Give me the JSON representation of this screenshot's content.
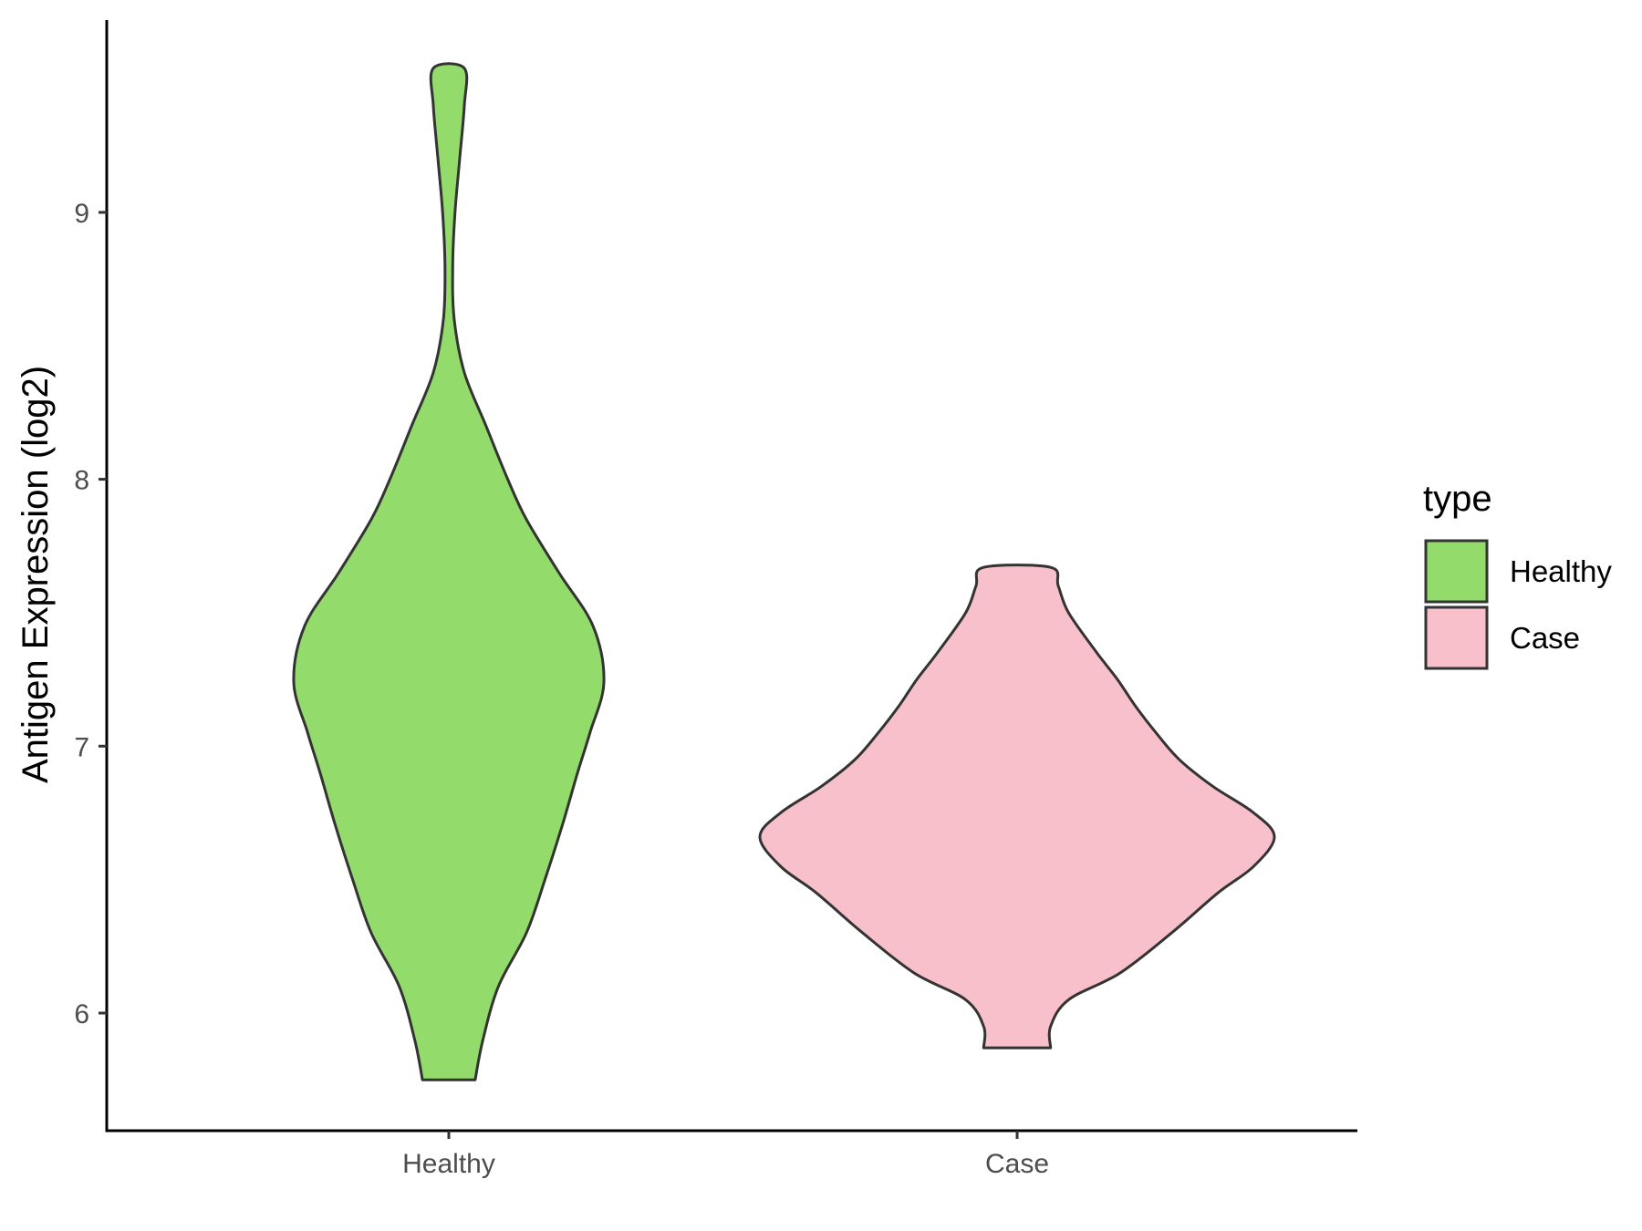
{
  "chart_data": {
    "type": "violin",
    "ylabel": "Antigen Expression (log2)",
    "xlabel": "",
    "ylim": [
      5.55,
      9.73
    ],
    "yticks": [
      6,
      7,
      8,
      9
    ],
    "categories": [
      "Healthy",
      "Case"
    ],
    "grid": false,
    "legend": {
      "title": "type",
      "placement": "right",
      "entries": [
        {
          "label": "Healthy",
          "color": "#93DC6B"
        },
        {
          "label": "Case",
          "color": "#F8C0CB"
        }
      ]
    },
    "series": [
      {
        "category": "Healthy",
        "color": "#93DC6B",
        "min": 5.75,
        "max": 9.54,
        "density_width": [
          [
            5.75,
            0.17
          ],
          [
            5.9,
            0.22
          ],
          [
            6.1,
            0.32
          ],
          [
            6.3,
            0.5
          ],
          [
            6.5,
            0.62
          ],
          [
            6.7,
            0.73
          ],
          [
            6.9,
            0.83
          ],
          [
            7.05,
            0.91
          ],
          [
            7.24,
            1.0
          ],
          [
            7.45,
            0.93
          ],
          [
            7.65,
            0.71
          ],
          [
            7.85,
            0.5
          ],
          [
            8.0,
            0.38
          ],
          [
            8.2,
            0.24
          ],
          [
            8.4,
            0.1
          ],
          [
            8.6,
            0.035
          ],
          [
            8.8,
            0.025
          ],
          [
            9.0,
            0.04
          ],
          [
            9.2,
            0.07
          ],
          [
            9.4,
            0.1
          ],
          [
            9.54,
            0.1
          ]
        ]
      },
      {
        "category": "Case",
        "color": "#F8C0CB",
        "min": 5.87,
        "max": 7.67,
        "density_width": [
          [
            5.87,
            0.13
          ],
          [
            5.95,
            0.13
          ],
          [
            6.05,
            0.2
          ],
          [
            6.15,
            0.4
          ],
          [
            6.3,
            0.6
          ],
          [
            6.45,
            0.78
          ],
          [
            6.55,
            0.92
          ],
          [
            6.66,
            1.0
          ],
          [
            6.75,
            0.92
          ],
          [
            6.85,
            0.76
          ],
          [
            6.95,
            0.63
          ],
          [
            7.05,
            0.54
          ],
          [
            7.15,
            0.46
          ],
          [
            7.25,
            0.39
          ],
          [
            7.35,
            0.31
          ],
          [
            7.5,
            0.2
          ],
          [
            7.6,
            0.16
          ],
          [
            7.67,
            0.13
          ]
        ]
      }
    ]
  }
}
